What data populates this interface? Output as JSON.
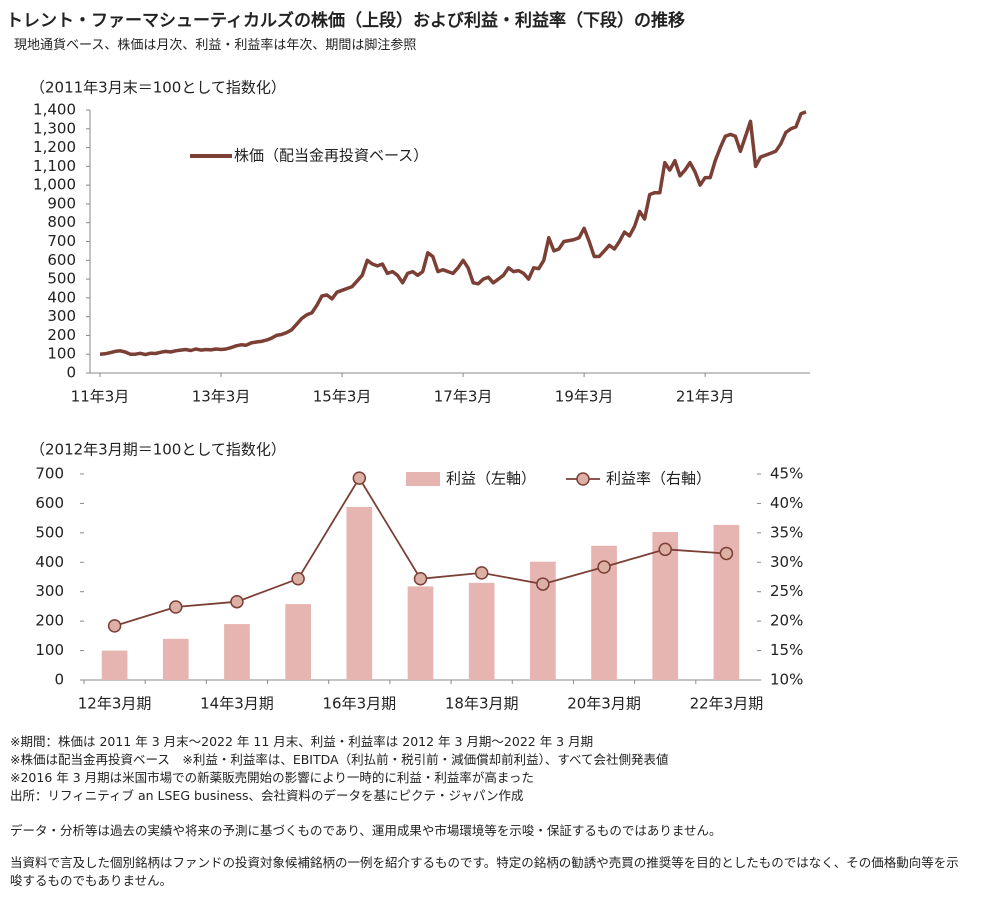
{
  "title": "トレント・ファーマシューティカルズの株価（上段）および利益・利益率（下段）の推移",
  "subtitle": "現地通貨ベース、株価は月次、利益・利益率は年次、期間は脚注参照",
  "notes": [
    "※期間：株価は 2011 年 3 月末～2022 年 11 月末、利益・利益率は 2012 年 3 月期～2022 年 3 月期",
    "※株価は配当金再投資ベース　※利益・利益率は、EBITDA（利払前・税引前・減価償却前利益）、すべて会社側発表値",
    "※2016 年 3 月期は米国市場での新薬販売開始の影響により一時的に利益・利益率が高まった",
    "出所：リフィニティブ an LSEG business、会社資料のデータを基にピクテ・ジャパン作成"
  ],
  "disclaimer": [
    "データ・分析等は過去の実績や将来の予測に基づくものであり、運用成果や市場環境等を示唆・保証するものではありません。",
    "当資料で言及した個別銘柄はファンドの投資対象候補銘柄の一例を紹介するものです。特定の銘柄の勧誘や売買の推奨等を目的としたものではなく、その価格動向等を示唆するものでもありません。"
  ],
  "chart_data": [
    {
      "type": "line",
      "annotation": "（2011年3月末＝100として指数化）",
      "categories": [
        "11年3月",
        null,
        null,
        null,
        null,
        null,
        null,
        null,
        null,
        null,
        null,
        null,
        null,
        null,
        null,
        null,
        null,
        null,
        null,
        null,
        null,
        null,
        null,
        null,
        "13年3月",
        null,
        null,
        null,
        null,
        null,
        null,
        null,
        null,
        null,
        null,
        null,
        null,
        null,
        null,
        null,
        null,
        null,
        null,
        null,
        null,
        null,
        null,
        null,
        "15年3月",
        null,
        null,
        null,
        null,
        null,
        null,
        null,
        null,
        null,
        null,
        null,
        null,
        null,
        null,
        null,
        null,
        null,
        null,
        null,
        null,
        null,
        null,
        null,
        "17年3月",
        null,
        null,
        null,
        null,
        null,
        null,
        null,
        null,
        null,
        null,
        null,
        null,
        null,
        null,
        null,
        null,
        null,
        null,
        null,
        null,
        null,
        null,
        null,
        "19年3月",
        null,
        null,
        null,
        null,
        null,
        null,
        null,
        null,
        null,
        null,
        null,
        null,
        null,
        null,
        null,
        null,
        null,
        null,
        null,
        null,
        null,
        null,
        null,
        "21年3月",
        null,
        null,
        null,
        null,
        null,
        null,
        null,
        null,
        null,
        null,
        null,
        null,
        null,
        null,
        null,
        null,
        null,
        null,
        null,
        null
      ],
      "series": [
        {
          "name": "株価（配当金再投資ベース）",
          "color": "#7b3f35",
          "values": [
            100,
            102,
            108,
            115,
            118,
            112,
            100,
            100,
            105,
            98,
            105,
            104,
            110,
            115,
            112,
            118,
            122,
            125,
            120,
            128,
            122,
            125,
            123,
            128,
            125,
            128,
            135,
            145,
            150,
            148,
            160,
            165,
            168,
            175,
            185,
            200,
            205,
            215,
            230,
            260,
            290,
            310,
            320,
            360,
            410,
            415,
            395,
            430,
            440,
            450,
            460,
            490,
            520,
            600,
            580,
            570,
            580,
            530,
            540,
            520,
            480,
            530,
            540,
            520,
            540,
            640,
            620,
            540,
            550,
            540,
            530,
            560,
            600,
            560,
            480,
            475,
            500,
            510,
            480,
            500,
            520,
            560,
            540,
            545,
            530,
            500,
            560,
            555,
            600,
            720,
            650,
            660,
            700,
            705,
            710,
            720,
            770,
            700,
            620,
            620,
            650,
            680,
            660,
            700,
            750,
            730,
            780,
            860,
            820,
            950,
            960,
            960,
            1120,
            1080,
            1130,
            1050,
            1080,
            1120,
            1070,
            1000,
            1040,
            1040,
            1130,
            1200,
            1260,
            1270,
            1260,
            1180,
            1260,
            1340,
            1100,
            1150,
            1160,
            1170,
            1180,
            1220,
            1280,
            1300,
            1310,
            1380,
            1390
          ]
        }
      ],
      "ylim": [
        0,
        1400
      ],
      "yticks": [
        0,
        100,
        200,
        300,
        400,
        500,
        600,
        700,
        800,
        900,
        {
          "value": 1000,
          "label": "1,000"
        },
        {
          "value": 1100,
          "label": "1,100"
        },
        {
          "value": 1200,
          "label": "1,200"
        },
        {
          "value": 1300,
          "label": "1,300"
        },
        {
          "value": 1400,
          "label": "1,400"
        }
      ],
      "legend": "top-left"
    },
    {
      "type": "bar",
      "annotation": "（2012年3月期＝100として指数化）",
      "categories": [
        "12年3月期",
        null,
        "14年3月期",
        null,
        "16年3月期",
        null,
        "18年3月期",
        null,
        "20年3月期",
        null,
        "22年3月期"
      ],
      "series": [
        {
          "name": "利益（左軸）",
          "color": "#e6b5b1",
          "values": [
            100,
            140,
            190,
            258,
            588,
            318,
            330,
            402,
            456,
            503,
            527
          ]
        },
        {
          "name": "利益率（右軸）",
          "type": "line",
          "axis": "y2",
          "color": "#7b3f35",
          "marker_color": "#dcb0a5",
          "values": [
            19.2,
            22.4,
            23.3,
            27.2,
            44.3,
            27.2,
            28.2,
            26.3,
            29.2,
            32.2,
            31.5
          ]
        }
      ],
      "ylim": [
        0,
        700
      ],
      "yticks": [
        0,
        100,
        200,
        300,
        400,
        500,
        600,
        700
      ],
      "y2lim": [
        10,
        45
      ],
      "y2ticks": [
        {
          "value": 10,
          "label": "10%"
        },
        {
          "value": 15,
          "label": "15%"
        },
        {
          "value": 20,
          "label": "20%"
        },
        {
          "value": 25,
          "label": "25%"
        },
        {
          "value": 30,
          "label": "30%"
        },
        {
          "value": 35,
          "label": "35%"
        },
        {
          "value": 40,
          "label": "40%"
        },
        {
          "value": 45,
          "label": "45%"
        }
      ],
      "legend": "top"
    }
  ]
}
